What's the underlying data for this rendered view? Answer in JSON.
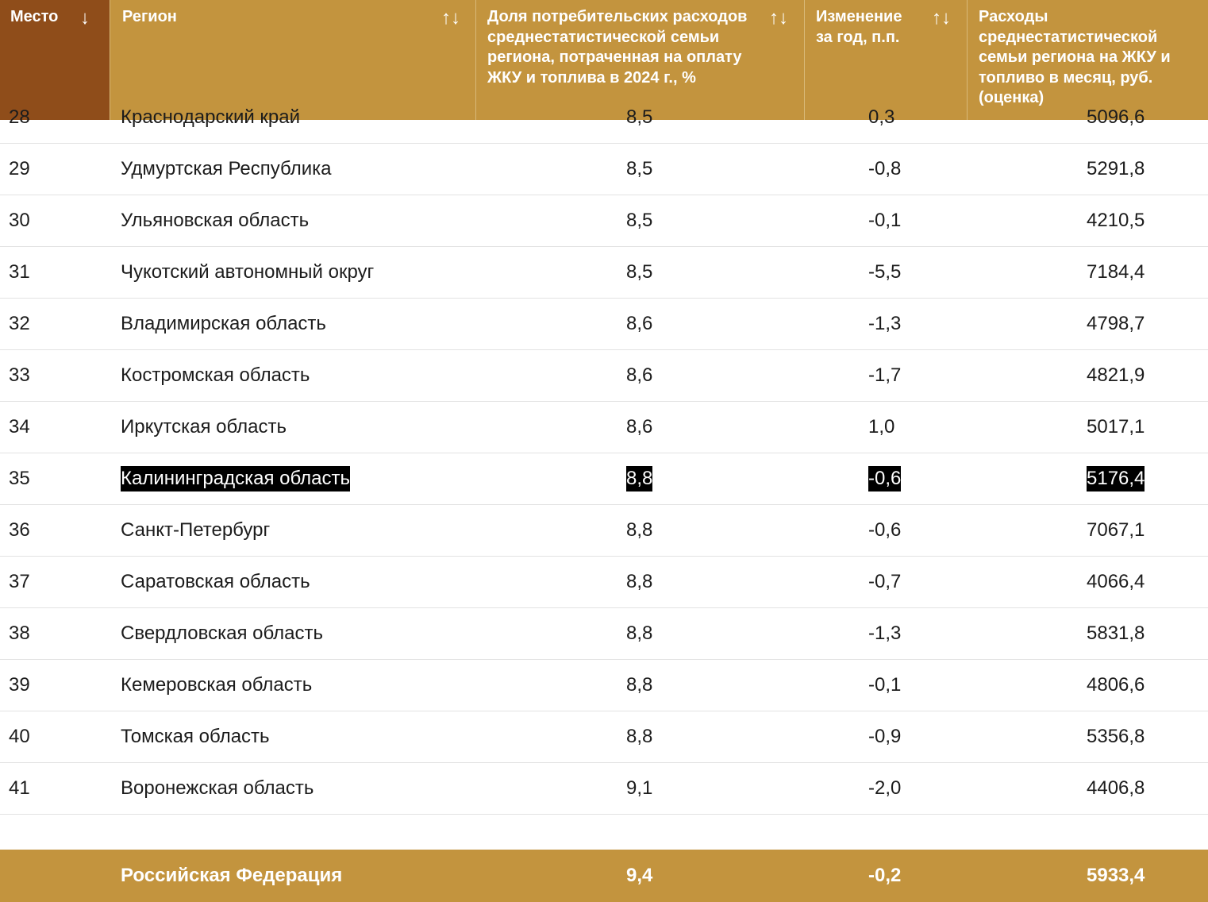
{
  "header": {
    "rank": {
      "label": "Место",
      "sort_icon": "↓"
    },
    "region": {
      "label": "Регион",
      "sort_icon": "↑↓"
    },
    "share": {
      "label": "Доля потребительских расходов среднестатистической семьи региона, потраченная на оплату ЖКУ и топлива в 2024 г., %",
      "sort_icon": "↑↓"
    },
    "change": {
      "label": "Изменение за год, п.п.",
      "sort_icon": "↑↓"
    },
    "cost": {
      "label": "Расходы среднестатистической семьи региона на ЖКУ и топливо в месяц, руб. (оценка)"
    }
  },
  "rows": [
    {
      "rank": "28",
      "region": "Краснодарский край",
      "share": "8,5",
      "change": "0,3",
      "cost": "5096,6"
    },
    {
      "rank": "29",
      "region": "Удмуртская Республика",
      "share": "8,5",
      "change": "-0,8",
      "cost": "5291,8"
    },
    {
      "rank": "30",
      "region": "Ульяновская область",
      "share": "8,5",
      "change": "-0,1",
      "cost": "4210,5"
    },
    {
      "rank": "31",
      "region": "Чукотский автономный округ",
      "share": "8,5",
      "change": "-5,5",
      "cost": "7184,4"
    },
    {
      "rank": "32",
      "region": "Владимирская область",
      "share": "8,6",
      "change": "-1,3",
      "cost": "4798,7"
    },
    {
      "rank": "33",
      "region": "Костромская область",
      "share": "8,6",
      "change": "-1,7",
      "cost": "4821,9"
    },
    {
      "rank": "34",
      "region": "Иркутская область",
      "share": "8,6",
      "change": "1,0",
      "cost": "5017,1"
    },
    {
      "rank": "35",
      "region": "Калининградская область",
      "share": "8,8",
      "change": "-0,6",
      "cost": "5176,4"
    },
    {
      "rank": "36",
      "region": "Санкт-Петербург",
      "share": "8,8",
      "change": "-0,6",
      "cost": "7067,1"
    },
    {
      "rank": "37",
      "region": "Саратовская область",
      "share": "8,8",
      "change": "-0,7",
      "cost": "4066,4"
    },
    {
      "rank": "38",
      "region": "Свердловская область",
      "share": "8,8",
      "change": "-1,3",
      "cost": "5831,8"
    },
    {
      "rank": "39",
      "region": "Кемеровская область",
      "share": "8,8",
      "change": "-0,1",
      "cost": "4806,6"
    },
    {
      "rank": "40",
      "region": "Томская область",
      "share": "8,8",
      "change": "-0,9",
      "cost": "5356,8"
    },
    {
      "rank": "41",
      "region": "Воронежская область",
      "share": "9,1",
      "change": "-2,0",
      "cost": "4406,8"
    }
  ],
  "total": {
    "region": "Российская Федерация",
    "share": "9,4",
    "change": "-0,2",
    "cost": "5933,4"
  },
  "colors": {
    "header_bg": "#c3943e",
    "rank_header_bg": "#8f4d1a",
    "highlight_bg": "#000000",
    "total_bg": "#c3943e"
  }
}
